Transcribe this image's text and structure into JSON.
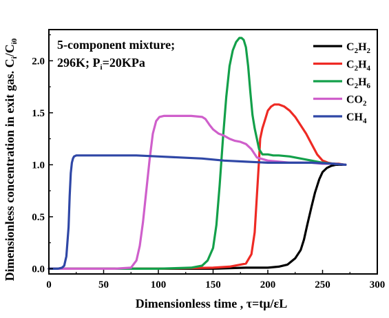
{
  "chart_data": {
    "type": "line",
    "xlabel": "Dimensionless time , τ=tμ/εL",
    "ylabel": "Dimensionless concentration in exit gas. C",
    "ylabel_sub1": "i",
    "ylabel_mid": "/C",
    "ylabel_sub2": "i0",
    "xlim": [
      0,
      300
    ],
    "ylim": [
      -0.05,
      2.3
    ],
    "xticks": [
      0,
      50,
      100,
      150,
      200,
      250,
      300
    ],
    "yticks": [
      0.0,
      0.5,
      1.0,
      1.5,
      2.0
    ],
    "xtick_labels": [
      "0",
      "50",
      "100",
      "150",
      "200",
      "250",
      "300"
    ],
    "ytick_labels": [
      "0.0",
      "0.5",
      "1.0",
      "1.5",
      "2.0"
    ],
    "grid": false,
    "legend_position": "top-right",
    "annotation": {
      "line1": "5-component mixture;",
      "line2_a": "296K; P",
      "line2_sub": "i",
      "line2_b": "=20KPa"
    },
    "series": [
      {
        "name": "C2H2",
        "label_parts": [
          "C",
          "2",
          "H",
          "2"
        ],
        "color": "#000000",
        "x": [
          0,
          100,
          150,
          180,
          200,
          210,
          218,
          225,
          230,
          233,
          236,
          240,
          243,
          247,
          250,
          254,
          258,
          262,
          266,
          271
        ],
        "y": [
          0,
          0,
          0,
          0.01,
          0.01,
          0.02,
          0.04,
          0.1,
          0.18,
          0.28,
          0.42,
          0.6,
          0.73,
          0.86,
          0.93,
          0.97,
          0.99,
          1.0,
          1.0,
          1.0
        ]
      },
      {
        "name": "C2H4",
        "label_parts": [
          "C",
          "2",
          "H",
          "4"
        ],
        "color": "#ee2a24",
        "x": [
          0,
          100,
          150,
          165,
          180,
          185,
          188,
          190,
          192,
          193,
          195,
          198,
          200,
          203,
          206,
          210,
          215,
          220,
          225,
          230,
          235,
          240,
          245,
          250,
          255,
          260,
          265,
          271
        ],
        "y": [
          0,
          0,
          0.01,
          0.02,
          0.05,
          0.14,
          0.35,
          0.7,
          1.05,
          1.25,
          1.35,
          1.45,
          1.52,
          1.56,
          1.58,
          1.58,
          1.56,
          1.52,
          1.46,
          1.38,
          1.3,
          1.2,
          1.1,
          1.04,
          1.02,
          1.01,
          1.01,
          1.0
        ]
      },
      {
        "name": "C2H6",
        "label_parts": [
          "C",
          "2",
          "H",
          "6"
        ],
        "color": "#13a04a",
        "x": [
          0,
          100,
          130,
          140,
          145,
          150,
          153,
          156,
          159,
          162,
          165,
          168,
          171,
          174,
          176,
          178,
          180,
          182,
          184,
          186,
          188,
          190,
          192,
          195,
          200,
          205,
          210,
          220,
          230,
          240,
          250,
          260,
          271
        ],
        "y": [
          0,
          0,
          0.01,
          0.03,
          0.08,
          0.2,
          0.42,
          0.8,
          1.25,
          1.65,
          1.95,
          2.1,
          2.18,
          2.22,
          2.22,
          2.2,
          2.13,
          1.95,
          1.7,
          1.48,
          1.35,
          1.25,
          1.15,
          1.1,
          1.1,
          1.09,
          1.09,
          1.08,
          1.06,
          1.04,
          1.02,
          1.01,
          1.0
        ]
      },
      {
        "name": "CO2",
        "label_parts": [
          "CO",
          "2"
        ],
        "color": "#cf5fcb",
        "x": [
          0,
          60,
          75,
          80,
          83,
          86,
          89,
          92,
          95,
          98,
          101,
          105,
          110,
          120,
          130,
          140,
          143,
          147,
          150,
          155,
          160,
          165,
          170,
          175,
          180,
          185,
          190,
          200,
          210,
          220,
          230,
          240,
          250,
          260,
          271
        ],
        "y": [
          0,
          0,
          0.01,
          0.08,
          0.22,
          0.45,
          0.75,
          1.05,
          1.3,
          1.42,
          1.46,
          1.47,
          1.47,
          1.47,
          1.47,
          1.46,
          1.44,
          1.38,
          1.34,
          1.3,
          1.28,
          1.25,
          1.23,
          1.22,
          1.2,
          1.15,
          1.07,
          1.04,
          1.03,
          1.02,
          1.02,
          1.02,
          1.01,
          1.01,
          1.0
        ]
      },
      {
        "name": "CH4",
        "label_parts": [
          "CH",
          "4"
        ],
        "color": "#2f47a6",
        "x": [
          0,
          8,
          12,
          14,
          16,
          18,
          19,
          20,
          21,
          22,
          23,
          25,
          30,
          50,
          80,
          100,
          120,
          140,
          150,
          160,
          180,
          200,
          220,
          240,
          260,
          271
        ],
        "y": [
          0,
          0,
          0.01,
          0.03,
          0.12,
          0.4,
          0.7,
          0.92,
          1.02,
          1.06,
          1.08,
          1.09,
          1.09,
          1.09,
          1.09,
          1.08,
          1.07,
          1.06,
          1.05,
          1.04,
          1.03,
          1.02,
          1.02,
          1.02,
          1.01,
          1.0
        ]
      }
    ]
  }
}
